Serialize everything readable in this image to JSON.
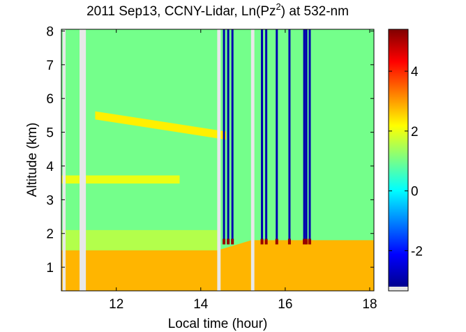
{
  "chart_data": {
    "type": "heatmap",
    "title": "2011 Sep13, CCNY-Lidar, Ln(Pz",
    "title_superscript": "2",
    "title_suffix": ") at 532-nm",
    "xlabel": "Local time (hour)",
    "ylabel": "Altitude (km)",
    "xlim": [
      10.7,
      18.1
    ],
    "ylim": [
      0.3,
      8.05
    ],
    "xticks": [
      12,
      14,
      16,
      18
    ],
    "yticks": [
      1,
      2,
      3,
      4,
      5,
      6,
      7,
      8
    ],
    "colorbar": {
      "clim": [
        -3.2,
        5.4
      ],
      "ticks": [
        -2,
        0,
        2,
        4
      ]
    },
    "background_value": 1.0,
    "features": [
      {
        "label": "boundary layer",
        "top_altitude_km": 1.5,
        "top_altitude_late_km": 1.8,
        "value": 2.8
      },
      {
        "label": "aerosol layer upper",
        "time_start": 11.5,
        "time_end": 14.6,
        "altitude_start_km": 5.5,
        "altitude_end_km": 4.9,
        "value": 2.3
      },
      {
        "label": "aerosol layer lower",
        "time_start": 10.7,
        "time_end": 13.5,
        "altitude_km": 3.6,
        "value": 2.0
      }
    ],
    "data_gaps_hours": [
      [
        10.73,
        10.8
      ],
      [
        11.13,
        11.28
      ],
      [
        14.39,
        14.47
      ],
      [
        15.19,
        15.27
      ]
    ],
    "cloud_columns_hours": [
      14.55,
      14.65,
      14.75,
      15.45,
      15.55,
      15.8,
      16.1,
      16.45,
      16.5,
      16.58
    ]
  }
}
